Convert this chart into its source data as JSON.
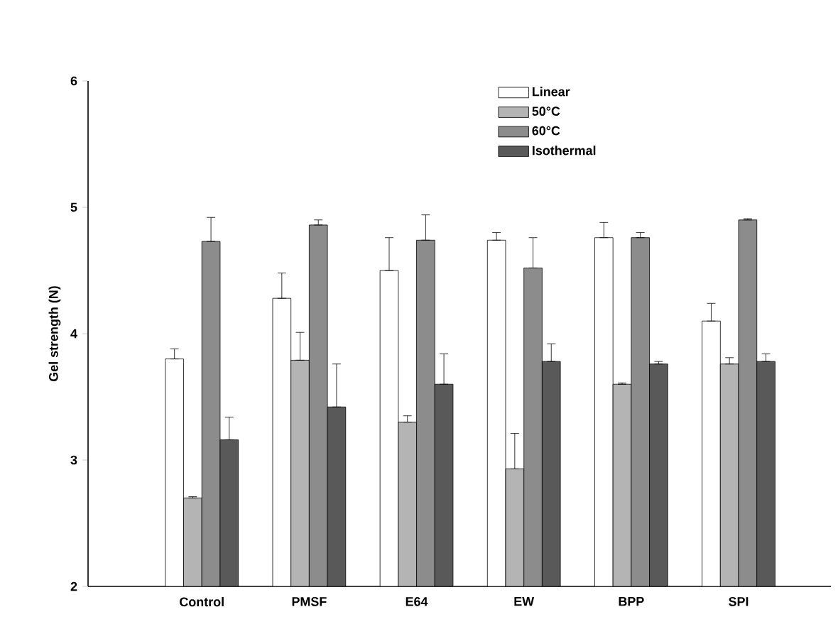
{
  "chart_data": {
    "type": "bar",
    "ylabel": "Gel strength  (N)",
    "categories": [
      "Control",
      "PMSF",
      "E64",
      "EW",
      "BPP",
      "SPI"
    ],
    "ylim": [
      2,
      6
    ],
    "yticks": [
      2,
      3,
      4,
      5,
      6
    ],
    "legend": "top",
    "series": [
      {
        "name": "Linear",
        "color": "#ffffff",
        "values": [
          3.8,
          4.28,
          4.5,
          4.74,
          4.76,
          4.1
        ],
        "errors": [
          [
            3.8,
            3.88
          ],
          [
            4.28,
            4.48
          ],
          [
            4.5,
            4.76
          ],
          [
            4.74,
            4.8
          ],
          [
            4.76,
            4.88
          ],
          [
            4.1,
            4.24
          ]
        ]
      },
      {
        "name": "50°C",
        "color": "#b4b4b4",
        "values": [
          2.7,
          3.79,
          3.3,
          2.93,
          3.6,
          3.76
        ],
        "errors": [
          [
            2.7,
            2.71
          ],
          [
            3.79,
            4.01
          ],
          [
            3.3,
            3.35
          ],
          [
            2.93,
            3.21
          ],
          [
            3.6,
            3.61
          ],
          [
            3.76,
            3.81
          ]
        ]
      },
      {
        "name": "60°C",
        "color": "#8c8c8c",
        "values": [
          4.73,
          4.86,
          4.74,
          4.52,
          4.76,
          4.9
        ],
        "errors": [
          [
            4.73,
            4.92
          ],
          [
            4.86,
            4.9
          ],
          [
            4.74,
            4.94
          ],
          [
            4.52,
            4.76
          ],
          [
            4.76,
            4.8
          ],
          [
            4.9,
            4.91
          ]
        ]
      },
      {
        "name": "Isothermal",
        "color": "#595959",
        "values": [
          3.16,
          3.42,
          3.6,
          3.78,
          3.76,
          3.78
        ],
        "errors": [
          [
            3.16,
            3.34
          ],
          [
            3.42,
            3.76
          ],
          [
            3.6,
            3.84
          ],
          [
            3.78,
            3.92
          ],
          [
            3.76,
            3.78
          ],
          [
            3.78,
            3.84
          ]
        ]
      }
    ]
  }
}
